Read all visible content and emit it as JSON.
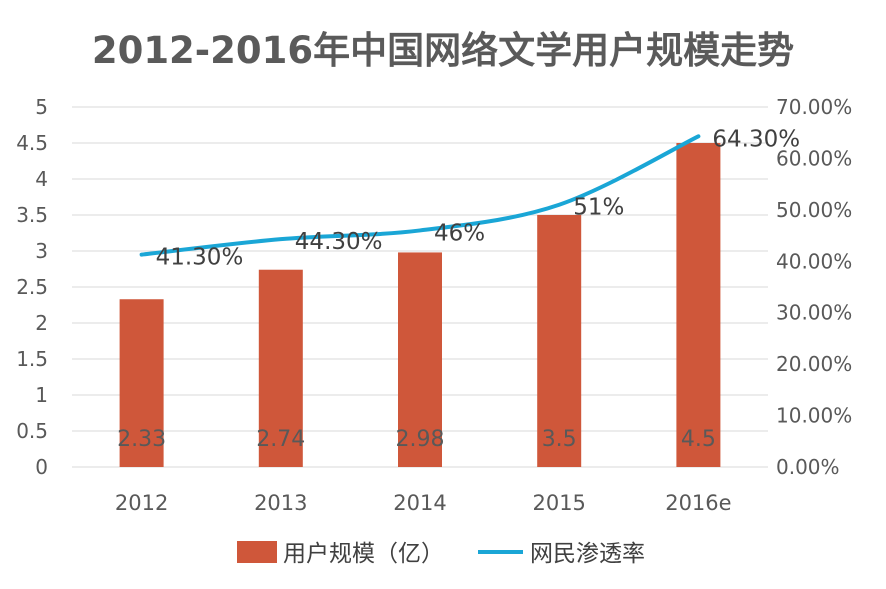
{
  "chart_data": {
    "type": "bar",
    "title": "2012-2016年中国网络文学用户规模走势",
    "categories": [
      "2012",
      "2013",
      "2014",
      "2015",
      "2016e"
    ],
    "series": [
      {
        "name": "用户规模（亿）",
        "type": "bar",
        "axis": "left",
        "color": "#cf573a",
        "values": [
          2.33,
          2.74,
          2.98,
          3.5,
          4.5
        ],
        "labels": [
          "2.33",
          "2.74",
          "2.98",
          "3.5",
          "4.5"
        ]
      },
      {
        "name": "网民渗透率",
        "type": "line",
        "axis": "right",
        "color": "#1aa6d6",
        "values": [
          41.3,
          44.3,
          46,
          51,
          64.3
        ],
        "labels": [
          "41.30%",
          "44.30%",
          "46%",
          "51%",
          "64.30%"
        ]
      }
    ],
    "y_left": {
      "lim": [
        0,
        5
      ],
      "ticks": [
        "0",
        "0.5",
        "1",
        "1.5",
        "2",
        "2.5",
        "3",
        "3.5",
        "4",
        "4.5",
        "5"
      ]
    },
    "y_right": {
      "lim": [
        0,
        70
      ],
      "ticks": [
        "0.00%",
        "10.00%",
        "20.00%",
        "30.00%",
        "40.00%",
        "50.00%",
        "60.00%",
        "70.00%"
      ]
    },
    "grid": true,
    "legend": "bottom"
  }
}
